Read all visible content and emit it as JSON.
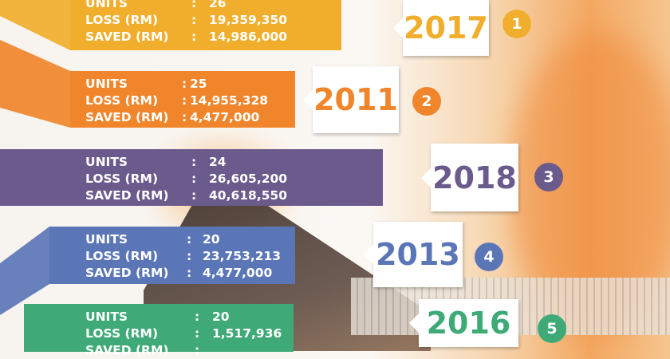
{
  "labels": {
    "units": "UNITS",
    "loss": "LOSS (RM)",
    "saved": "SAVED (RM)",
    "colon": ":"
  },
  "entries": [
    {
      "rank": "1",
      "year": "2017",
      "units": "26",
      "loss": "19,359,350",
      "saved": "14,986,000",
      "color": "#f0ae2c"
    },
    {
      "rank": "2",
      "year": "2011",
      "units": "25",
      "loss": "14,955,328",
      "saved": "4,477,000",
      "color": "#f0852b"
    },
    {
      "rank": "3",
      "year": "2018",
      "units": "24",
      "loss": "26,605,200",
      "saved": "40,618,550",
      "color": "#6b5a8c"
    },
    {
      "rank": "4",
      "year": "2013",
      "units": "20",
      "loss": "23,753,213",
      "saved": "4,477,000",
      "color": "#5b76b6"
    },
    {
      "rank": "5",
      "year": "2016",
      "units": "20",
      "loss": "1,517,936",
      "saved": "",
      "color": "#3faa78"
    }
  ]
}
